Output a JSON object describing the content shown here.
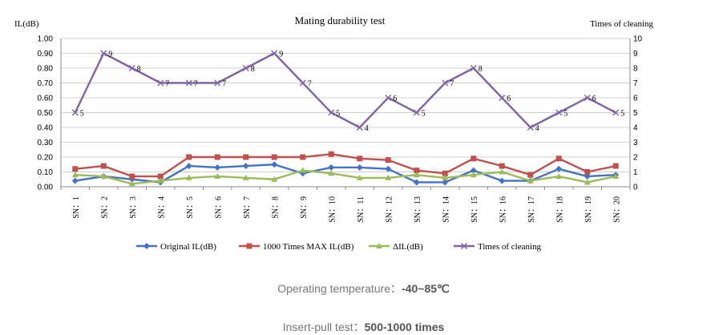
{
  "chart_data": {
    "type": "line",
    "title": "Mating durability test",
    "ylabel": "IL(dB)",
    "y2label": "Times of cleaning",
    "ylim": [
      0,
      1.0
    ],
    "y2lim": [
      0,
      10
    ],
    "yticks": [
      "0.00",
      "0.10",
      "0.20",
      "0.30",
      "0.40",
      "0.50",
      "0.60",
      "0.70",
      "0.80",
      "0.90",
      "1.00"
    ],
    "y2ticks": [
      "0",
      "1",
      "2",
      "3",
      "4",
      "5",
      "6",
      "7",
      "8",
      "9",
      "10"
    ],
    "categories": [
      "SN：1",
      "SN：2",
      "SN：3",
      "SN：4",
      "SN：5",
      "SN：6",
      "SN：7",
      "SN：8",
      "SN：9",
      "SN：10",
      "SN：11",
      "SN：12",
      "SN：13",
      "SN：14",
      "SN：15",
      "SN：16",
      "SN：17",
      "SN：18",
      "SN：19",
      "SN：20"
    ],
    "series": [
      {
        "name": "Original  IL(dB)",
        "axis": "left",
        "color": "#4472C4",
        "marker": "diamond",
        "values": [
          0.04,
          0.07,
          0.05,
          0.03,
          0.14,
          0.13,
          0.14,
          0.15,
          0.09,
          0.13,
          0.13,
          0.12,
          0.03,
          0.03,
          0.11,
          0.04,
          0.04,
          0.12,
          0.07,
          0.08
        ]
      },
      {
        "name": "1000 Times MAX IL(dB)",
        "axis": "left",
        "color": "#C0504D",
        "marker": "square",
        "values": [
          0.12,
          0.14,
          0.07,
          0.07,
          0.2,
          0.2,
          0.2,
          0.2,
          0.2,
          0.22,
          0.19,
          0.18,
          0.11,
          0.09,
          0.19,
          0.14,
          0.08,
          0.19,
          0.1,
          0.14
        ]
      },
      {
        "name": "ΔIL(dB)",
        "axis": "left",
        "color": "#9BBB59",
        "marker": "triangle",
        "values": [
          0.08,
          0.07,
          0.02,
          0.04,
          0.06,
          0.07,
          0.06,
          0.05,
          0.11,
          0.09,
          0.06,
          0.06,
          0.08,
          0.06,
          0.08,
          0.1,
          0.04,
          0.07,
          0.03,
          0.07
        ]
      },
      {
        "name": "Times of cleaning",
        "axis": "right",
        "color": "#8064A2",
        "marker": "x",
        "values": [
          5,
          9,
          8,
          7,
          7,
          7,
          8,
          9,
          7,
          5,
          4,
          6,
          5,
          7,
          8,
          6,
          4,
          5,
          6,
          5
        ],
        "labels": [
          "5",
          "9",
          "8",
          "7",
          "7",
          "7",
          "8",
          "9",
          "7",
          "5",
          "4",
          "6",
          "5",
          "7",
          "8",
          "6",
          "4",
          "5",
          "6",
          "5"
        ]
      }
    ],
    "legend_position": "bottom"
  },
  "captions": {
    "temp_label": "Operating temperature：",
    "temp_value": "-40~85℃",
    "insert_label": "Insert-pull test：",
    "insert_value": "500-1000 times"
  }
}
